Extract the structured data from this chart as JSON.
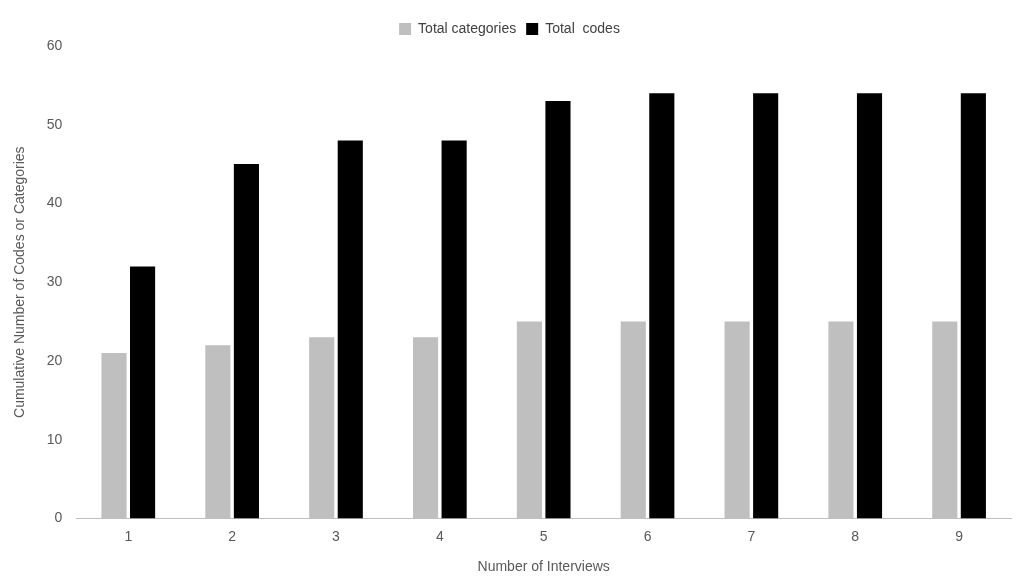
{
  "chart_data": {
    "type": "bar",
    "xlabel": "Number of Interviews",
    "ylabel": "Cumulative Number of Codes or Categories",
    "categories": [
      "1",
      "2",
      "3",
      "4",
      "5",
      "6",
      "7",
      "8",
      "9"
    ],
    "series": [
      {
        "name": "Total categories",
        "color": "#bfbfbf",
        "values": [
          21,
          22,
          23,
          23,
          25,
          25,
          25,
          25,
          25
        ]
      },
      {
        "name": "Total  codes",
        "color": "#000000",
        "values": [
          32,
          45,
          48,
          48,
          53,
          54,
          54,
          54,
          54
        ]
      }
    ],
    "ylim": [
      0,
      60
    ],
    "yticks": [
      0,
      10,
      20,
      30,
      40,
      50,
      60
    ],
    "grid": false,
    "legend": "top"
  }
}
